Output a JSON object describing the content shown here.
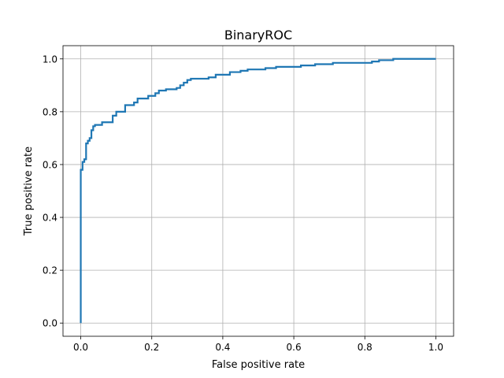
{
  "chart_data": {
    "type": "line",
    "title": "BinaryROC",
    "xlabel": "False positive rate",
    "ylabel": "True positive rate",
    "xlim": [
      -0.05,
      1.05
    ],
    "ylim": [
      -0.05,
      1.05
    ],
    "xticks": [
      0.0,
      0.2,
      0.4,
      0.6,
      0.8,
      1.0
    ],
    "yticks": [
      0.0,
      0.2,
      0.4,
      0.6,
      0.8,
      1.0
    ],
    "xtick_labels": [
      "0.0",
      "0.2",
      "0.4",
      "0.6",
      "0.8",
      "1.0"
    ],
    "ytick_labels": [
      "0.0",
      "0.2",
      "0.4",
      "0.6",
      "0.8",
      "1.0"
    ],
    "grid": true,
    "series": [
      {
        "color": "#1f77b4",
        "step": true,
        "x": [
          0.0,
          0.0,
          0.005,
          0.005,
          0.01,
          0.01,
          0.015,
          0.015,
          0.02,
          0.02,
          0.025,
          0.025,
          0.03,
          0.03,
          0.035,
          0.035,
          0.04,
          0.04,
          0.05,
          0.05,
          0.06,
          0.06,
          0.075,
          0.075,
          0.09,
          0.09,
          0.1,
          0.1,
          0.11,
          0.11,
          0.125,
          0.125,
          0.15,
          0.15,
          0.16,
          0.16,
          0.19,
          0.19,
          0.21,
          0.21,
          0.22,
          0.22,
          0.24,
          0.24,
          0.27,
          0.27,
          0.28,
          0.28,
          0.29,
          0.29,
          0.3,
          0.3,
          0.31,
          0.31,
          0.36,
          0.36,
          0.38,
          0.38,
          0.42,
          0.42,
          0.45,
          0.45,
          0.47,
          0.47,
          0.52,
          0.52,
          0.55,
          0.55,
          0.62,
          0.62,
          0.66,
          0.66,
          0.71,
          0.71,
          0.82,
          0.82,
          0.84,
          0.84,
          0.88,
          0.88,
          0.95,
          0.95,
          1.0
        ],
        "y": [
          0.0,
          0.58,
          0.58,
          0.61,
          0.61,
          0.62,
          0.62,
          0.68,
          0.68,
          0.69,
          0.69,
          0.7,
          0.7,
          0.73,
          0.73,
          0.745,
          0.745,
          0.75,
          0.75,
          0.75,
          0.75,
          0.76,
          0.76,
          0.76,
          0.76,
          0.785,
          0.785,
          0.8,
          0.8,
          0.8,
          0.8,
          0.825,
          0.825,
          0.835,
          0.835,
          0.85,
          0.85,
          0.86,
          0.86,
          0.87,
          0.87,
          0.88,
          0.88,
          0.885,
          0.885,
          0.89,
          0.89,
          0.9,
          0.9,
          0.91,
          0.91,
          0.92,
          0.92,
          0.925,
          0.925,
          0.93,
          0.93,
          0.94,
          0.94,
          0.95,
          0.95,
          0.955,
          0.955,
          0.96,
          0.96,
          0.965,
          0.965,
          0.97,
          0.97,
          0.975,
          0.975,
          0.98,
          0.98,
          0.985,
          0.985,
          0.99,
          0.99,
          0.995,
          0.995,
          1.0,
          1.0,
          1.0,
          1.0
        ]
      }
    ]
  }
}
